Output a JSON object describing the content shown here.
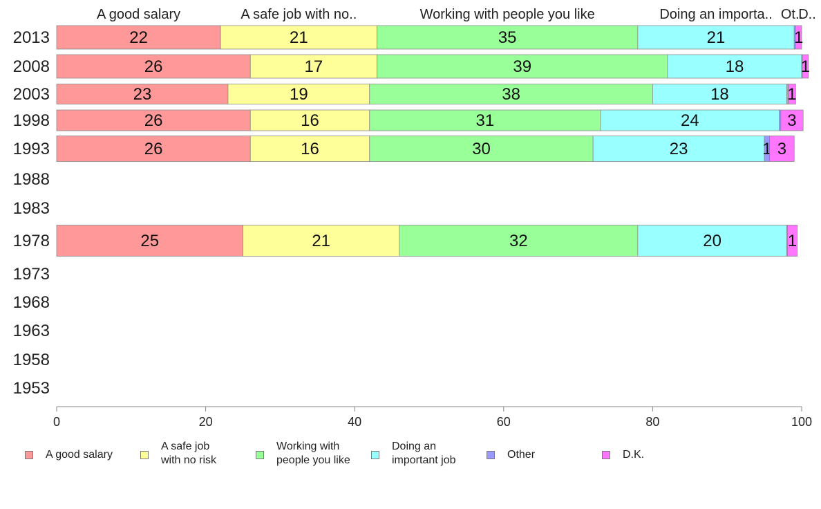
{
  "chart_data": {
    "type": "bar",
    "orientation": "horizontal",
    "stacked": true,
    "categories": [
      "2013",
      "2008",
      "2003",
      "1998",
      "1993",
      "1988",
      "1983",
      "1978",
      "1973",
      "1968",
      "1963",
      "1958",
      "1953"
    ],
    "series": [
      {
        "name": "A good salary",
        "header": "A good salary",
        "legend": "A good salary",
        "color": "#ff9999",
        "values": [
          22,
          26,
          23,
          26,
          26,
          null,
          null,
          25,
          null,
          null,
          null,
          null,
          null
        ],
        "labels": [
          "22",
          "26",
          "23",
          "26",
          "26",
          "",
          "",
          "25",
          "",
          "",
          "",
          "",
          ""
        ]
      },
      {
        "name": "A safe job with no risk",
        "header": "A safe job with no..",
        "legend": "A safe job\nwith no risk",
        "color": "#ffff99",
        "values": [
          21,
          17,
          19,
          16,
          16,
          null,
          null,
          21,
          null,
          null,
          null,
          null,
          null
        ],
        "labels": [
          "21",
          "17",
          "19",
          "16",
          "16",
          "",
          "",
          "21",
          "",
          "",
          "",
          "",
          ""
        ]
      },
      {
        "name": "Working with people you like",
        "header": "Working with people you like",
        "legend": "Working with\npeople you like",
        "color": "#99ff99",
        "values": [
          35,
          39,
          38,
          31,
          30,
          null,
          null,
          32,
          null,
          null,
          null,
          null,
          null
        ],
        "labels": [
          "35",
          "39",
          "38",
          "31",
          "30",
          "",
          "",
          "32",
          "",
          "",
          "",
          "",
          ""
        ]
      },
      {
        "name": "Doing an important job",
        "header": "Doing an importa..",
        "legend": "Doing an\nimportant job",
        "color": "#99ffff",
        "values": [
          21,
          18,
          18,
          24,
          23,
          null,
          null,
          20,
          null,
          null,
          null,
          null,
          null
        ],
        "labels": [
          "21",
          "18",
          "18",
          "24",
          "23",
          "",
          "",
          "20",
          "",
          "",
          "",
          "",
          ""
        ]
      },
      {
        "name": "Other",
        "header": "Ot..",
        "legend": "Other",
        "color": "#9999ff",
        "values": [
          0.2,
          0.1,
          0.2,
          0.2,
          0.7,
          null,
          null,
          0.1,
          null,
          null,
          null,
          null,
          null
        ],
        "labels": [
          "",
          "",
          "",
          "",
          "1",
          "",
          "",
          "",
          "",
          "",
          "",
          "",
          ""
        ]
      },
      {
        "name": "D.K.",
        "header": "D..",
        "legend": "D.K.",
        "color": "#ff77ff",
        "values": [
          0.8,
          0.8,
          1,
          3,
          3.3,
          null,
          null,
          1.3,
          null,
          null,
          null,
          null,
          null
        ],
        "labels": [
          "1",
          "1",
          "1",
          "3",
          "3",
          "",
          "",
          "1",
          "",
          "",
          "",
          "",
          ""
        ]
      }
    ],
    "xlim": [
      0,
      100
    ],
    "x_ticks": [
      "0",
      "20",
      "40",
      "60",
      "80",
      "100"
    ],
    "grid": false,
    "legend_position": "bottom"
  }
}
